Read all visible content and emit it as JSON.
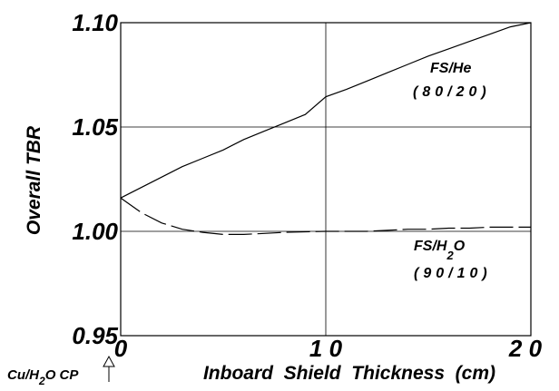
{
  "chart_data": {
    "type": "line",
    "title": "",
    "xlabel": "Inboard  Shield  Thickness  (cm)",
    "ylabel": "Overall  TBR",
    "xlim": [
      0,
      20
    ],
    "ylim": [
      0.95,
      1.1
    ],
    "xticks": [
      "0",
      "1 0",
      "2 0"
    ],
    "yticks": [
      "0.95",
      "1.00",
      "1.05",
      "1.10"
    ],
    "grid": true,
    "series": [
      {
        "name": "FS/He (80/20)",
        "style": "solid",
        "color": "#000000",
        "x": [
          0,
          1,
          2,
          3,
          4,
          5,
          6,
          7,
          8,
          9,
          10,
          11,
          12,
          13,
          14,
          15,
          16,
          17,
          18,
          19,
          20
        ],
        "y": [
          1.016,
          1.021,
          1.026,
          1.031,
          1.035,
          1.039,
          1.044,
          1.048,
          1.052,
          1.056,
          1.0645,
          1.068,
          1.072,
          1.076,
          1.08,
          1.084,
          1.0875,
          1.091,
          1.0945,
          1.098,
          1.1
        ]
      },
      {
        "name": "FS/H2O (90/10)",
        "style": "dashed",
        "color": "#000000",
        "x": [
          0,
          1,
          2,
          3,
          4,
          5,
          6,
          7,
          8,
          9,
          10,
          11,
          12,
          13,
          14,
          15,
          16,
          17,
          18,
          19,
          20
        ],
        "y": [
          1.016,
          1.009,
          1.004,
          1.001,
          0.9995,
          0.9985,
          0.9985,
          0.999,
          0.9995,
          0.9998,
          1.0,
          1.0,
          1.0,
          1.0005,
          1.001,
          1.001,
          1.0015,
          1.0015,
          1.002,
          1.002,
          1.002
        ]
      }
    ],
    "annotations": [
      {
        "id": "he_name",
        "text": "FS/He"
      },
      {
        "id": "he_ratio",
        "text": "(80/20)"
      },
      {
        "id": "h2o_name",
        "text": "FS/H2O"
      },
      {
        "id": "h2o_ratio",
        "text": "(90/10)"
      },
      {
        "id": "marker",
        "text": "Cu/H2O CP"
      }
    ]
  }
}
